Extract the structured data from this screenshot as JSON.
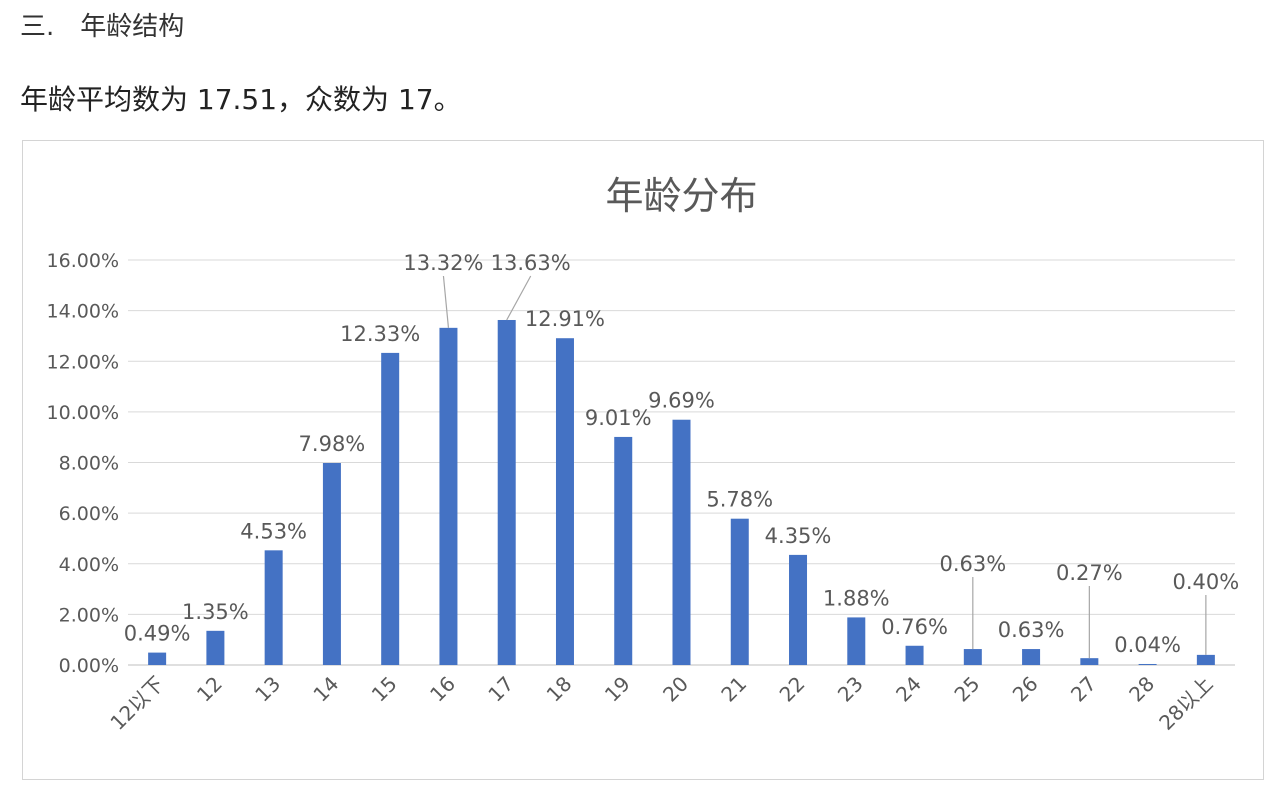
{
  "section": {
    "number": "三.",
    "heading": "年龄结构"
  },
  "summary": "年龄平均数为 17.51，众数为 17。",
  "chart_data": {
    "type": "bar",
    "title": "年龄分布",
    "xlabel": "",
    "ylabel": "",
    "ylim": [
      0,
      16
    ],
    "yticks": [
      "0.00%",
      "2.00%",
      "4.00%",
      "6.00%",
      "8.00%",
      "10.00%",
      "12.00%",
      "14.00%",
      "16.00%"
    ],
    "categories": [
      "12以下",
      "12",
      "13",
      "14",
      "15",
      "16",
      "17",
      "18",
      "19",
      "20",
      "21",
      "22",
      "23",
      "24",
      "25",
      "26",
      "27",
      "28",
      "28以上"
    ],
    "values": [
      0.49,
      1.35,
      4.53,
      7.98,
      12.33,
      13.32,
      13.63,
      12.91,
      9.01,
      9.69,
      5.78,
      4.35,
      1.88,
      0.76,
      0.63,
      0.63,
      0.27,
      0.04,
      0.4
    ],
    "data_labels": [
      "0.49%",
      "1.35%",
      "4.53%",
      "7.98%",
      "12.33%",
      "13.32%",
      "13.63%",
      "12.91%",
      "9.01%",
      "9.69%",
      "5.78%",
      "4.35%",
      "1.88%",
      "0.76%",
      "0.63%",
      "0.63%",
      "0.27%",
      "0.04%",
      "0.40%"
    ],
    "bar_color": "#4472C4",
    "grid": true,
    "legend": "none"
  }
}
